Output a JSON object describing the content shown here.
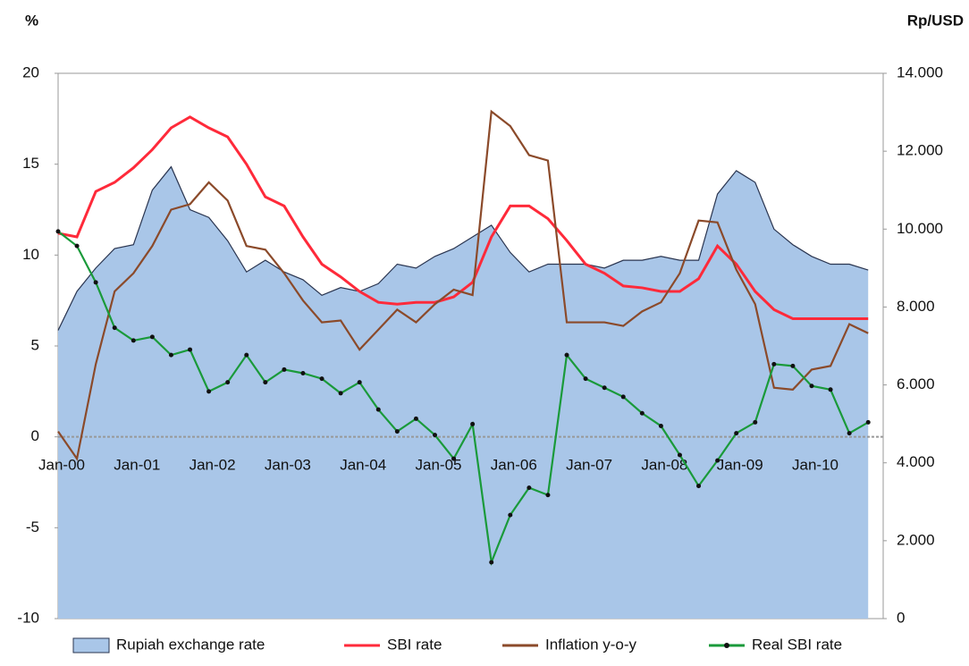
{
  "chart_data": {
    "type": "line",
    "ylabel": "%",
    "y2label": "Rp/USD",
    "categories": [
      "Jan-00",
      null,
      null,
      null,
      "Jan-01",
      null,
      null,
      null,
      "Jan-02",
      null,
      null,
      null,
      "Jan-03",
      null,
      null,
      null,
      "Jan-04",
      null,
      null,
      null,
      "Jan-05",
      null,
      null,
      null,
      "Jan-06",
      null,
      null,
      null,
      "Jan-07",
      null,
      null,
      null,
      "Jan-08",
      null,
      null,
      null,
      "Jan-09",
      null,
      null,
      null,
      "Jan-10",
      null,
      null,
      null
    ],
    "ylim": [
      -10,
      20
    ],
    "yticks": [
      -10,
      -5,
      0,
      5,
      10,
      15,
      20
    ],
    "y2lim": [
      0,
      14000
    ],
    "y2ticks": [
      0,
      {
        "value": 2000,
        "label": "2.000"
      },
      {
        "value": 4000,
        "label": "4.000"
      },
      {
        "value": 6000,
        "label": "6.000"
      },
      {
        "value": 8000,
        "label": "8.000"
      },
      {
        "value": 10000,
        "label": "10.000"
      },
      {
        "value": 12000,
        "label": "12.000"
      },
      {
        "value": 14000,
        "label": "14.000"
      }
    ],
    "legend": "bottom",
    "series": [
      {
        "name": "Rupiah exchange rate",
        "type": "area",
        "axis": "y2",
        "color": "#a9c6e8",
        "values": [
          7400,
          8400,
          9000,
          9500,
          9600,
          11000,
          11600,
          10500,
          10300,
          9700,
          8900,
          9200,
          8900,
          8700,
          8300,
          8500,
          8400,
          8600,
          9100,
          9000,
          9300,
          9500,
          9800,
          10100,
          9400,
          8900,
          9100,
          9100,
          9100,
          9000,
          9200,
          9200,
          9300,
          9200,
          9200,
          10900,
          11500,
          11200,
          10000,
          9600,
          9300,
          9100,
          9100,
          8950
        ]
      },
      {
        "name": "SBI rate",
        "type": "line",
        "color": "#ff2a3a",
        "values": [
          11.2,
          11,
          13.5,
          14,
          14.8,
          15.8,
          17,
          17.6,
          17,
          16.5,
          15,
          13.2,
          12.7,
          11,
          9.5,
          8.8,
          8,
          7.4,
          7.3,
          7.4,
          7.4,
          7.7,
          8.5,
          11,
          12.7,
          12.7,
          12,
          10.8,
          9.5,
          9,
          8.3,
          8.2,
          8,
          8,
          8.7,
          10.5,
          9.5,
          8,
          7,
          6.5,
          6.5,
          6.5,
          6.5,
          6.5
        ]
      },
      {
        "name": "Inflation y-o-y",
        "type": "line",
        "color": "#8b4a2a",
        "values": [
          0.3,
          -1.2,
          4,
          8,
          9,
          10.5,
          12.5,
          12.8,
          14,
          13,
          10.5,
          10.3,
          9,
          7.5,
          6.3,
          6.4,
          4.8,
          5.9,
          7,
          6.3,
          7.3,
          8.1,
          7.8,
          17.9,
          17.1,
          15.5,
          15.2,
          6.3,
          6.3,
          6.3,
          6.1,
          6.9,
          7.4,
          9,
          11.9,
          11.8,
          9.2,
          7.3,
          2.7,
          2.6,
          3.7,
          3.9,
          6.2,
          5.7
        ]
      },
      {
        "name": "Real SBI rate",
        "type": "line",
        "markers": true,
        "color": "#1a9a3a",
        "values": [
          11.3,
          10.5,
          8.5,
          6,
          5.3,
          5.5,
          4.5,
          4.8,
          2.5,
          3,
          4.5,
          3,
          3.7,
          3.5,
          3.2,
          2.4,
          3,
          1.5,
          0.3,
          1,
          0.1,
          -1.2,
          0.7,
          -6.9,
          -4.3,
          -2.8,
          -3.2,
          4.5,
          3.2,
          2.7,
          2.2,
          1.3,
          0.6,
          -1,
          -2.7,
          -1.3,
          0.2,
          0.8,
          4,
          3.9,
          2.8,
          2.6,
          0.2,
          0.8
        ]
      }
    ]
  }
}
